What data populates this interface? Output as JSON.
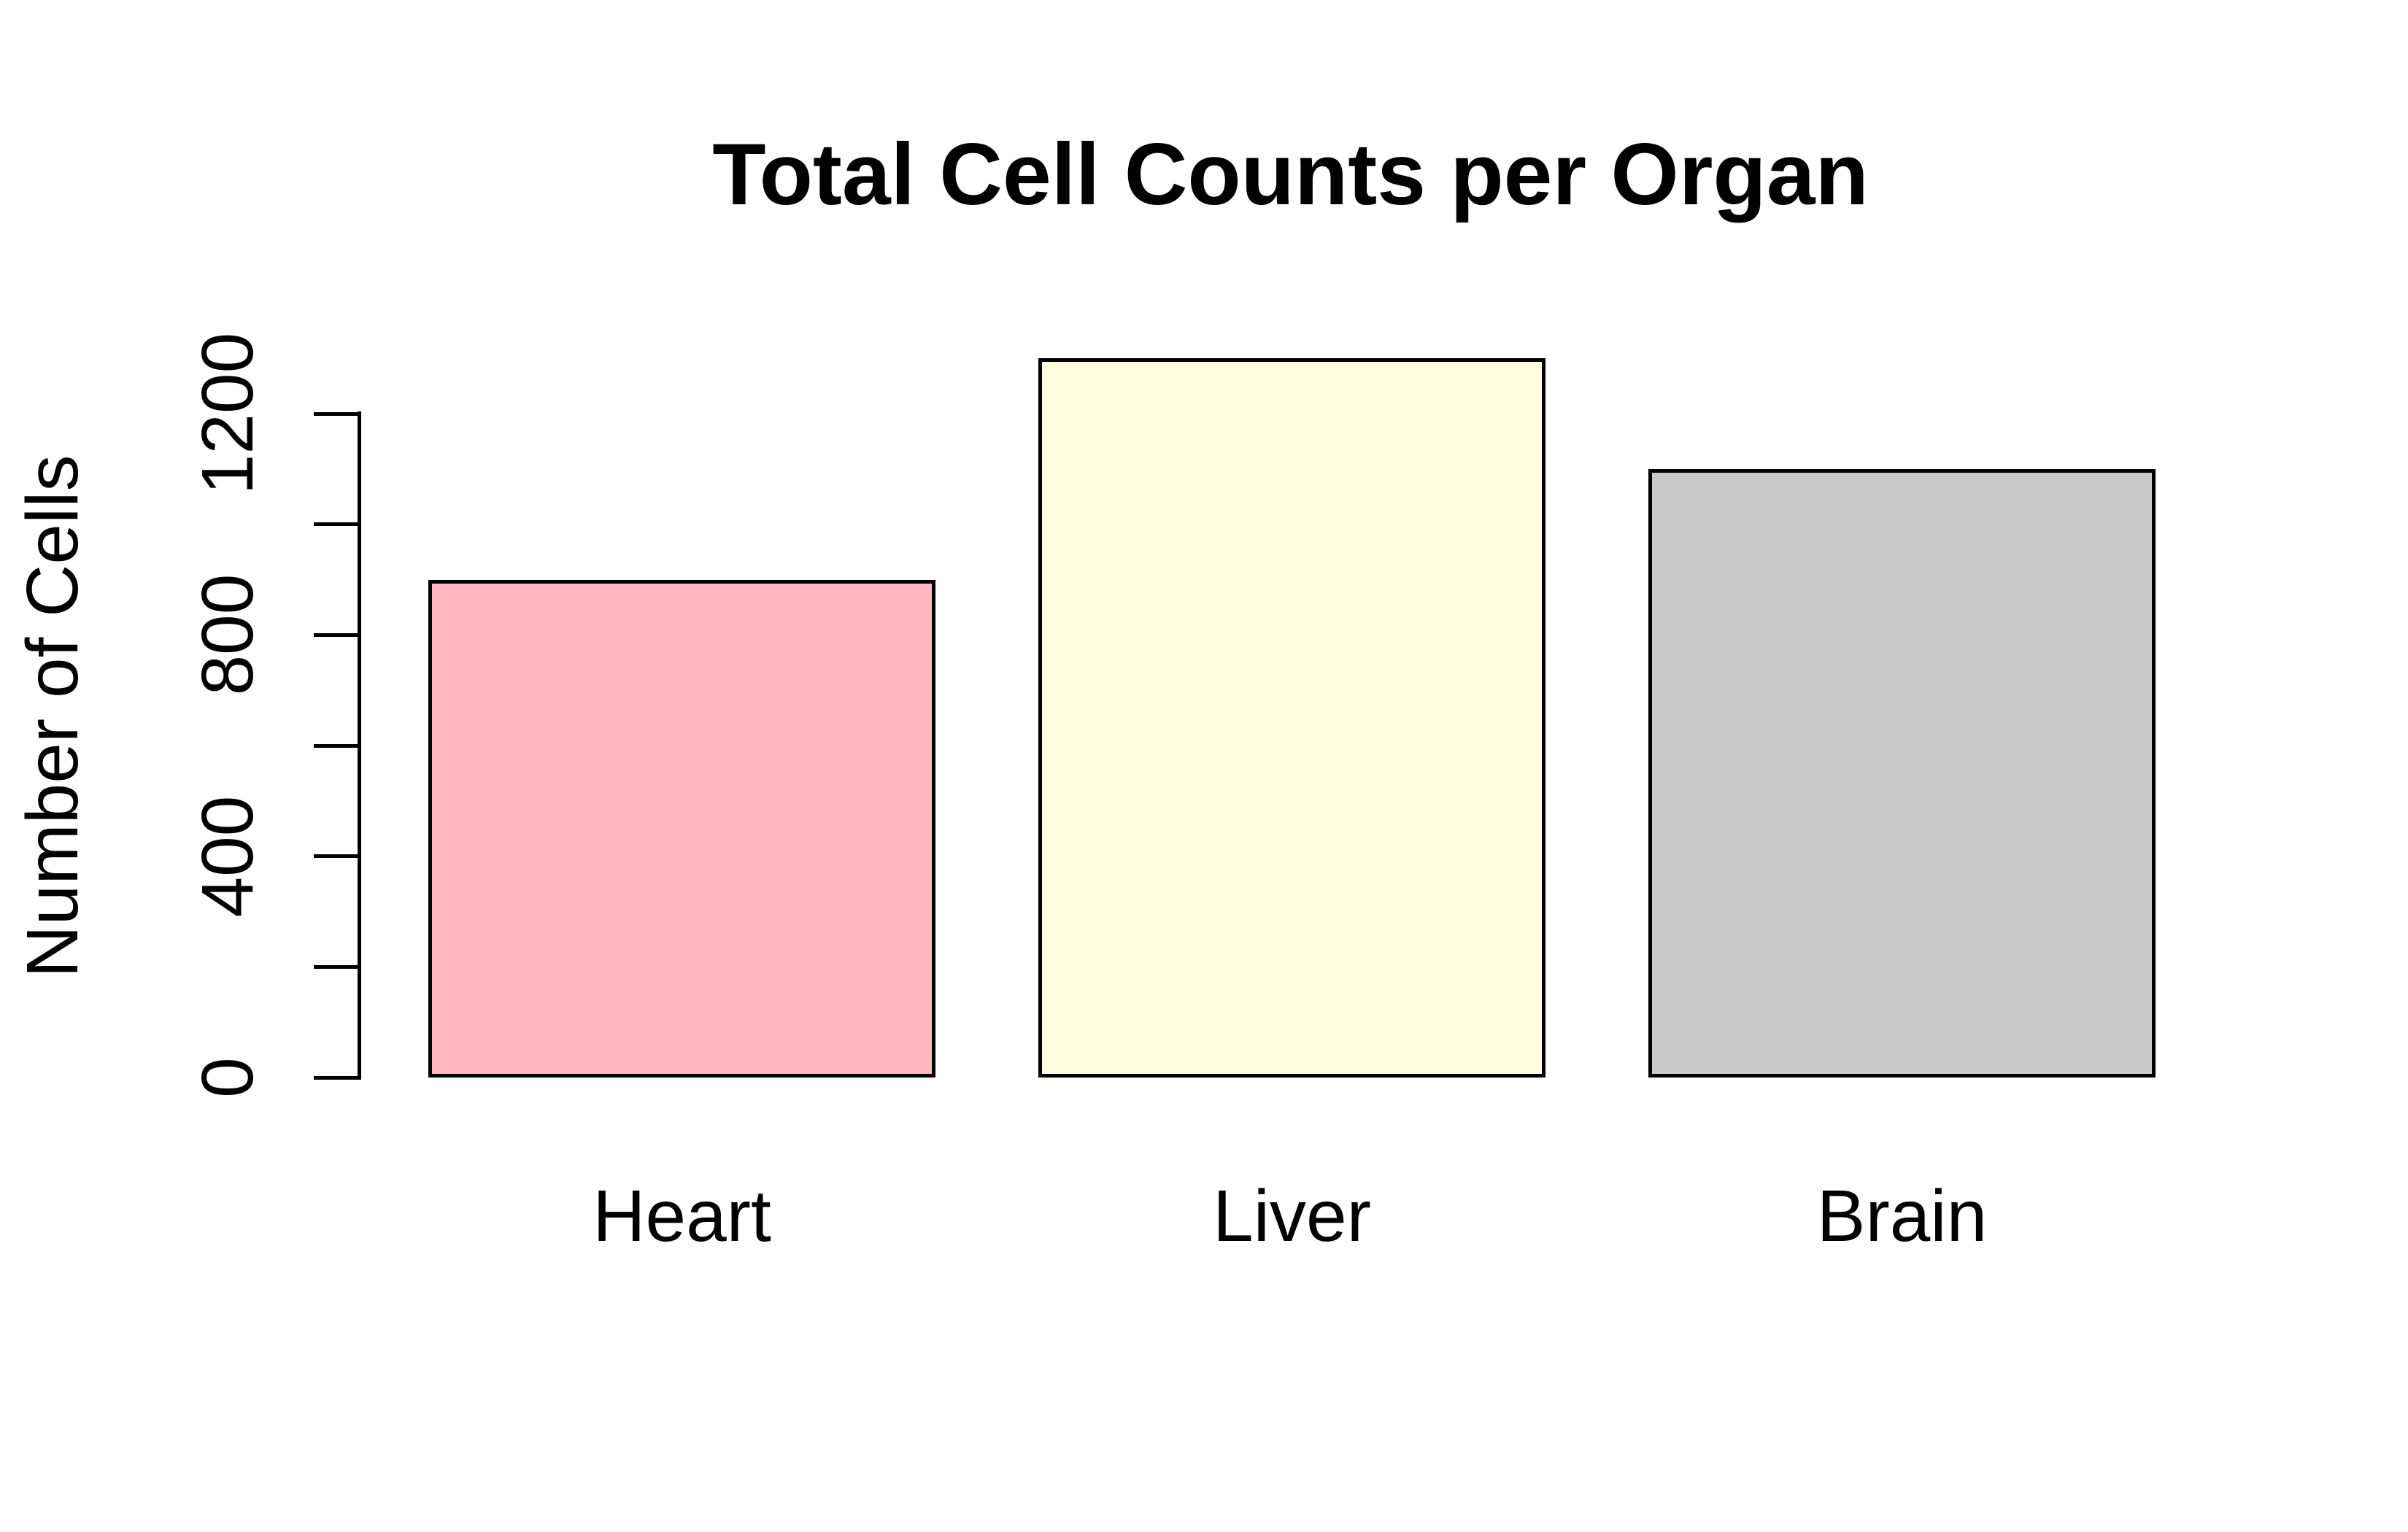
{
  "chart_data": {
    "type": "bar",
    "title": "Total Cell Counts per Organ",
    "xlabel": "",
    "ylabel": "Number of Cells",
    "categories": [
      "Heart",
      "Liver",
      "Brain"
    ],
    "values": [
      900,
      1300,
      1100
    ],
    "bar_colors": [
      "#FFB6C1",
      "#FFFFE0",
      "#C9C9C9"
    ],
    "bar_border_color": "#000000",
    "axis_color": "#000000",
    "background_color": "#FFFFFF",
    "ylim": [
      0,
      1300
    ],
    "yticks": [
      0,
      200,
      400,
      600,
      800,
      1000,
      1200
    ],
    "ytick_labeled": [
      0,
      400,
      800,
      1200
    ],
    "grid": false,
    "legend": false
  }
}
